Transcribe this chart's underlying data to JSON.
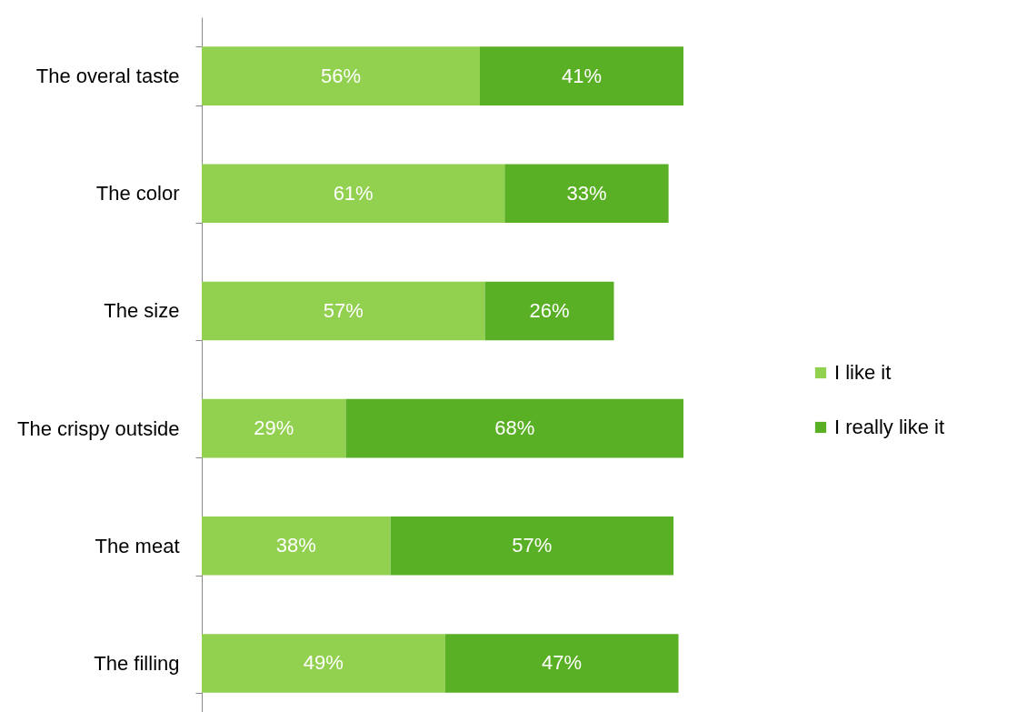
{
  "chart_data": {
    "type": "bar",
    "orientation": "horizontal",
    "stacked": true,
    "legend": "right",
    "categories": [
      "The overal taste",
      "The color",
      "The size",
      "The crispy outside",
      "The meat",
      "The filling"
    ],
    "series": [
      {
        "name": "I like it",
        "color": "#92d050",
        "values": [
          56,
          61,
          57,
          29,
          38,
          49
        ],
        "value_labels": [
          "56%",
          "61%",
          "57%",
          "29%",
          "38%",
          "49%"
        ]
      },
      {
        "name": "I really like it",
        "color": "#5ab024",
        "values": [
          41,
          33,
          26,
          68,
          57,
          47
        ],
        "value_labels": [
          "41%",
          "33%",
          "26%",
          "68%",
          "57%",
          "47%"
        ]
      }
    ]
  }
}
